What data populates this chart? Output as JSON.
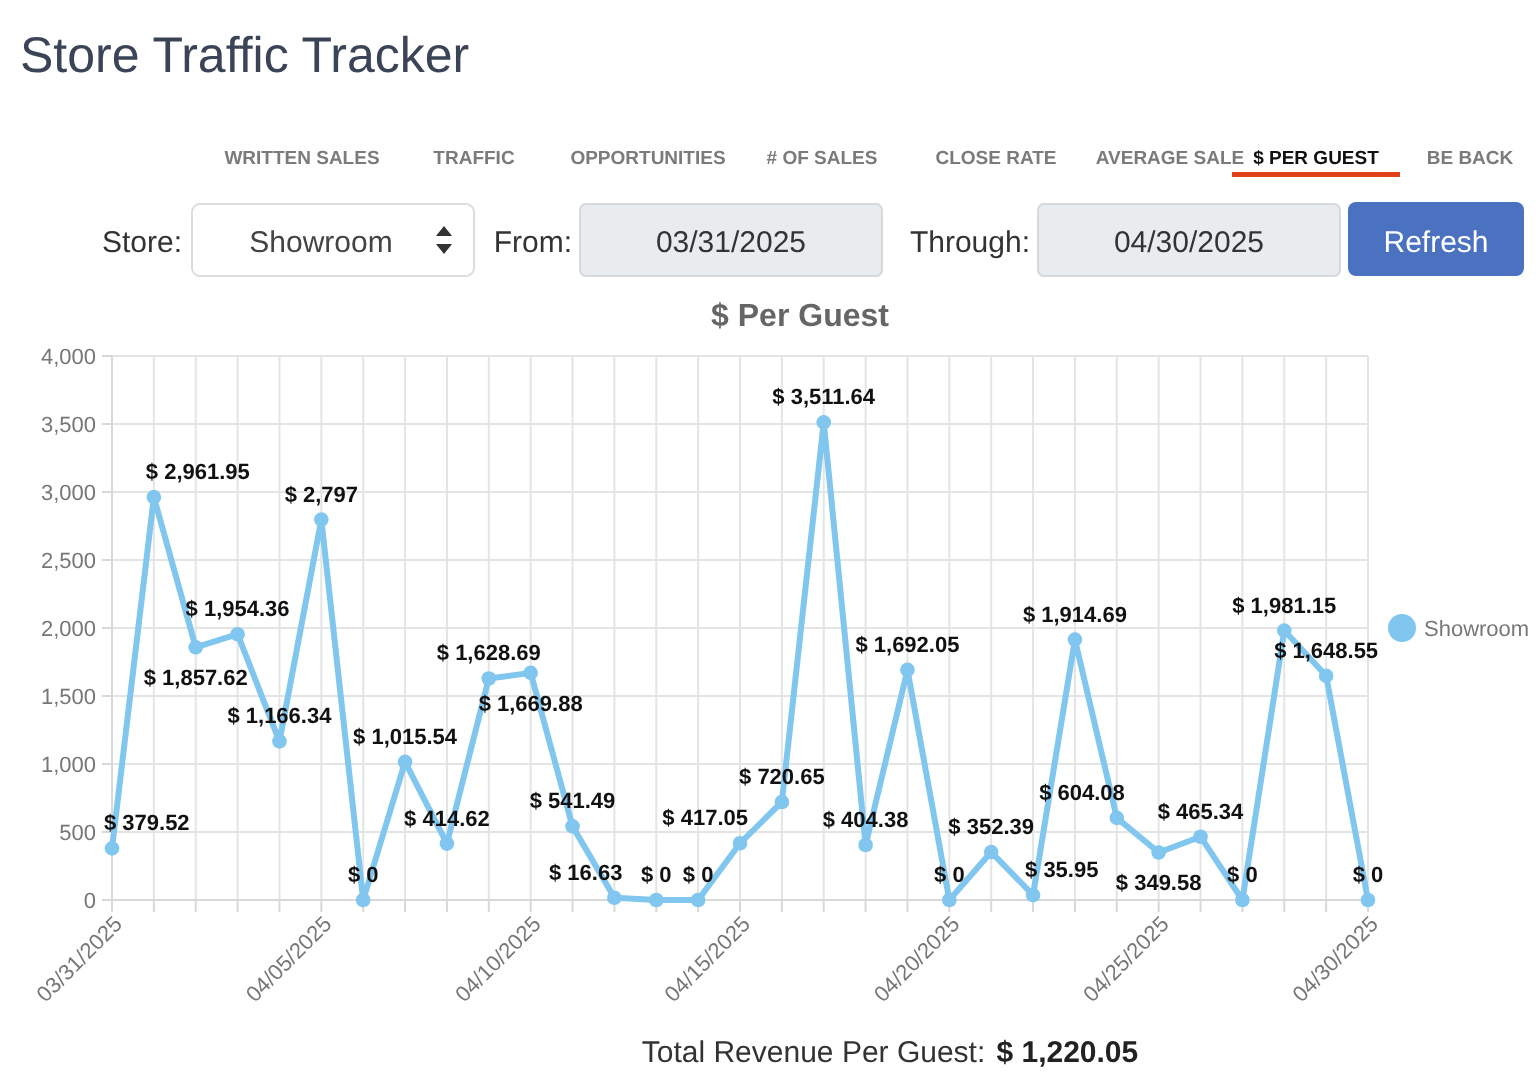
{
  "chart_data": {
    "type": "line",
    "title": "$ Per Guest",
    "categories": [
      "03/31/2025",
      null,
      null,
      null,
      null,
      "04/05/2025",
      null,
      null,
      null,
      null,
      "04/10/2025",
      null,
      null,
      null,
      null,
      "04/15/2025",
      null,
      null,
      null,
      null,
      "04/20/2025",
      null,
      null,
      null,
      null,
      "04/25/2025",
      null,
      null,
      null,
      null,
      "04/30/2025"
    ],
    "series": [
      {
        "name": "Showroom",
        "color": "#80c6ef",
        "values": [
          379.52,
          2961.95,
          1857.62,
          1954.36,
          1166.34,
          2797,
          0,
          1015.54,
          414.62,
          1628.69,
          1669.88,
          541.49,
          16.63,
          0,
          0,
          417.05,
          720.65,
          3511.64,
          404.38,
          1692.05,
          0,
          352.39,
          35.95,
          1914.69,
          604.08,
          349.58,
          465.34,
          0,
          1981.15,
          1648.55,
          0
        ],
        "value_labels": [
          "$ 379.52",
          "$ 2,961.95",
          "$ 1,857.62",
          "$ 1,954.36",
          "$ 1,166.34",
          "$ 2,797",
          "$ 0",
          "$ 1,015.54",
          "$ 414.62",
          "$ 1,628.69",
          "$ 1,669.88",
          "$ 541.49",
          "$ 16.63",
          "$ 0",
          "$ 0",
          "$ 417.05",
          "$ 720.65",
          "$ 3,511.64",
          "$ 404.38",
          "$ 1,692.05",
          "$ 0",
          "$ 352.39",
          "$ 35.95",
          "$ 1,914.69",
          "$ 604.08",
          "$ 349.58",
          "$ 465.34",
          "$ 0",
          "$ 1,981.15",
          "$ 1,648.55",
          "$ 0"
        ]
      }
    ],
    "ylim": [
      0,
      4000
    ],
    "yticks": [
      0,
      500,
      {
        "value": 1000,
        "label": "1,000"
      },
      {
        "value": 1500,
        "label": "1,500"
      },
      {
        "value": 2000,
        "label": "2,000"
      },
      {
        "value": 2500,
        "label": "2,500"
      },
      {
        "value": 3000,
        "label": "3,000"
      },
      {
        "value": 3500,
        "label": "3,500"
      },
      {
        "value": 4000,
        "label": "4,000"
      }
    ],
    "grid": true,
    "legend": "right",
    "marker": "circle",
    "annotations": [
      "Store Traffic Tracker",
      "WRITTEN SALES",
      "TRAFFIC",
      "OPPORTUNITIES",
      "# OF SALES",
      "CLOSE RATE",
      "AVERAGE SALE",
      "$ PER GUEST",
      "BE BACK",
      "Store:",
      "Showroom",
      "From:",
      "03/31/2025",
      "Through:",
      "04/30/2025",
      "Refresh",
      "Total Revenue Per Guest:",
      "$ 1,220.05"
    ]
  }
}
